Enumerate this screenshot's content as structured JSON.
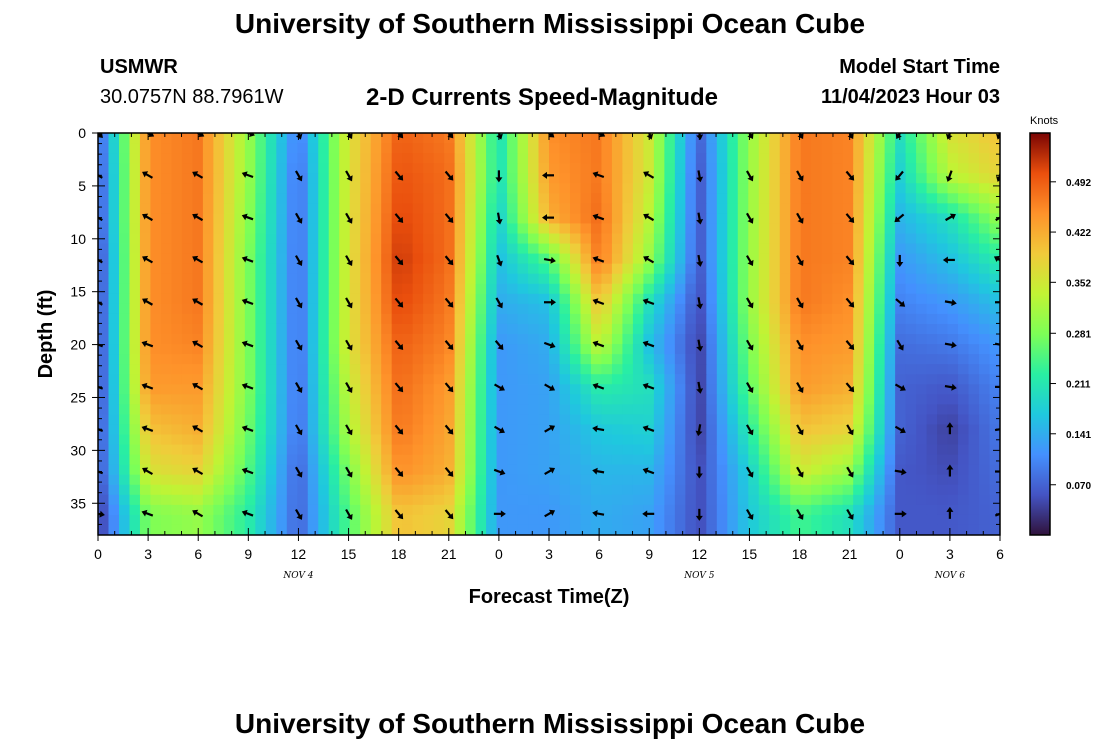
{
  "header": {
    "title": "University of Southern Mississippi Ocean Cube",
    "station_id": "USMWR",
    "station_coords": "30.0757N  88.7961W",
    "subtitle": "2-D Currents Speed-Magnitude",
    "model_start_label": "Model Start Time",
    "model_start_value": "11/04/2023 Hour 03"
  },
  "footer": {
    "title": "University of Southern Mississippi Ocean Cube"
  },
  "chart_data": {
    "type": "heatmap",
    "title": "2-D Currents Speed-Magnitude",
    "xlabel": "Forecast Time(Z)",
    "ylabel": "Depth (ft)",
    "x_ticks": [
      "0",
      "3",
      "6",
      "9",
      "12",
      "15",
      "18",
      "21",
      "0",
      "3",
      "6",
      "9",
      "12",
      "15",
      "18",
      "21",
      "0",
      "3",
      "6"
    ],
    "x_range_hours": [
      0,
      54
    ],
    "date_labels": [
      {
        "label": "NOV 4",
        "hour": 12
      },
      {
        "label": "NOV 5",
        "hour": 36
      },
      {
        "label": "NOV 6",
        "hour": 51
      }
    ],
    "y_ticks": [
      0,
      5,
      10,
      15,
      20,
      25,
      30,
      35
    ],
    "y_range_ft": [
      0,
      38
    ],
    "y_inverted": true,
    "colorbar": {
      "label": "Knots",
      "range": [
        0,
        0.56
      ],
      "ticks": [
        "0.492",
        "0.422",
        "0.352",
        "0.281",
        "0.211",
        "0.141",
        "0.070"
      ],
      "tick_values": [
        0.492,
        0.422,
        0.352,
        0.281,
        0.211,
        0.141,
        0.07
      ]
    },
    "time_hours": [
      0,
      3,
      6,
      9,
      12,
      15,
      18,
      21,
      24,
      27,
      30,
      33,
      36,
      39,
      42,
      45,
      48,
      51,
      54
    ],
    "depths_ft": [
      0,
      4,
      8,
      12,
      16,
      20,
      24,
      28,
      32,
      36
    ],
    "speed_knots": [
      [
        0.06,
        0.45,
        0.47,
        0.3,
        0.09,
        0.36,
        0.49,
        0.47,
        0.2,
        0.45,
        0.47,
        0.35,
        0.07,
        0.3,
        0.47,
        0.46,
        0.2,
        0.36,
        0.4
      ],
      [
        0.05,
        0.45,
        0.47,
        0.3,
        0.08,
        0.36,
        0.5,
        0.48,
        0.2,
        0.44,
        0.47,
        0.35,
        0.06,
        0.3,
        0.47,
        0.46,
        0.18,
        0.33,
        0.38
      ],
      [
        0.05,
        0.45,
        0.47,
        0.29,
        0.08,
        0.36,
        0.51,
        0.48,
        0.18,
        0.42,
        0.48,
        0.33,
        0.06,
        0.3,
        0.47,
        0.46,
        0.15,
        0.2,
        0.3
      ],
      [
        0.04,
        0.45,
        0.47,
        0.28,
        0.08,
        0.36,
        0.52,
        0.48,
        0.16,
        0.25,
        0.47,
        0.3,
        0.06,
        0.3,
        0.47,
        0.46,
        0.12,
        0.16,
        0.22
      ],
      [
        0.04,
        0.45,
        0.47,
        0.28,
        0.08,
        0.36,
        0.51,
        0.47,
        0.14,
        0.16,
        0.4,
        0.2,
        0.05,
        0.3,
        0.47,
        0.45,
        0.1,
        0.12,
        0.16
      ],
      [
        0.04,
        0.45,
        0.46,
        0.28,
        0.08,
        0.36,
        0.49,
        0.46,
        0.12,
        0.14,
        0.34,
        0.16,
        0.04,
        0.28,
        0.45,
        0.44,
        0.08,
        0.09,
        0.12
      ],
      [
        0.04,
        0.44,
        0.44,
        0.28,
        0.08,
        0.34,
        0.48,
        0.44,
        0.12,
        0.13,
        0.22,
        0.2,
        0.04,
        0.26,
        0.44,
        0.42,
        0.07,
        0.06,
        0.1
      ],
      [
        0.05,
        0.4,
        0.42,
        0.27,
        0.08,
        0.32,
        0.47,
        0.43,
        0.12,
        0.13,
        0.17,
        0.18,
        0.04,
        0.22,
        0.4,
        0.38,
        0.07,
        0.04,
        0.09
      ],
      [
        0.05,
        0.36,
        0.38,
        0.25,
        0.07,
        0.28,
        0.45,
        0.42,
        0.12,
        0.13,
        0.15,
        0.15,
        0.05,
        0.18,
        0.35,
        0.3,
        0.06,
        0.05,
        0.08
      ],
      [
        0.03,
        0.28,
        0.3,
        0.22,
        0.07,
        0.25,
        0.4,
        0.38,
        0.12,
        0.12,
        0.14,
        0.13,
        0.05,
        0.17,
        0.24,
        0.2,
        0.06,
        0.06,
        0.07
      ]
    ],
    "direction_deg": [
      [
        135,
        120,
        120,
        110,
        160,
        150,
        140,
        140,
        160,
        130,
        120,
        160,
        170,
        150,
        150,
        150,
        210,
        200,
        200
      ],
      [
        300,
        300,
        300,
        290,
        150,
        150,
        140,
        140,
        180,
        270,
        290,
        300,
        170,
        150,
        150,
        140,
        220,
        200,
        200
      ],
      [
        300,
        300,
        300,
        290,
        150,
        150,
        140,
        140,
        170,
        270,
        290,
        300,
        170,
        150,
        150,
        140,
        230,
        60,
        60
      ],
      [
        300,
        300,
        300,
        290,
        150,
        150,
        140,
        140,
        160,
        100,
        290,
        300,
        170,
        150,
        150,
        140,
        180,
        270,
        300
      ],
      [
        300,
        300,
        300,
        290,
        150,
        150,
        140,
        140,
        150,
        90,
        290,
        290,
        170,
        150,
        150,
        140,
        130,
        100,
        90
      ],
      [
        290,
        290,
        300,
        290,
        150,
        150,
        140,
        140,
        140,
        110,
        290,
        290,
        170,
        150,
        150,
        140,
        150,
        100,
        100
      ],
      [
        290,
        290,
        300,
        290,
        150,
        150,
        140,
        140,
        120,
        120,
        290,
        290,
        170,
        150,
        150,
        140,
        120,
        100,
        90
      ],
      [
        290,
        290,
        300,
        290,
        150,
        150,
        140,
        140,
        120,
        60,
        280,
        290,
        190,
        150,
        150,
        150,
        120,
        0,
        80
      ],
      [
        290,
        300,
        300,
        290,
        150,
        150,
        140,
        140,
        110,
        60,
        280,
        290,
        180,
        150,
        150,
        150,
        100,
        0,
        90
      ],
      [
        100,
        290,
        300,
        290,
        150,
        150,
        140,
        140,
        90,
        60,
        280,
        270,
        180,
        150,
        150,
        150,
        90,
        0,
        70
      ]
    ]
  }
}
